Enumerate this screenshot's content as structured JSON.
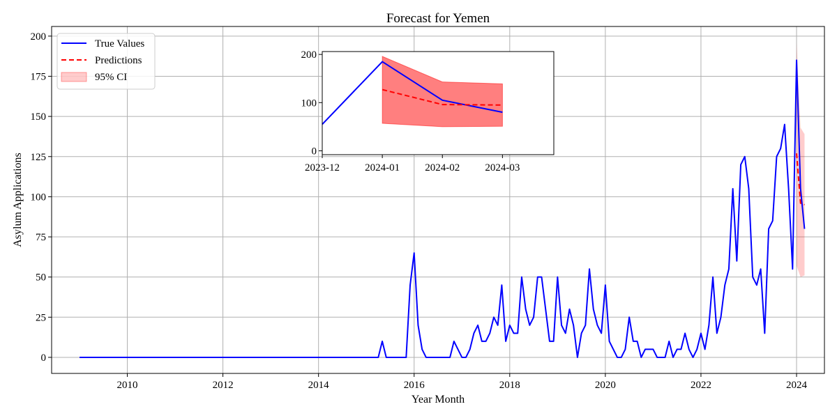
{
  "colors": {
    "true_values": "#0000ff",
    "predictions": "#ff0000",
    "ci_fill": "#ff0000",
    "grid": "#b0b0b0"
  },
  "chart_data": {
    "type": "line",
    "title": "Forecast for Yemen",
    "xlabel": "Year Month",
    "ylabel": "Asylum Applications",
    "xlim": [
      "2008-06",
      "2024-08"
    ],
    "ylim": [
      -10,
      206
    ],
    "x_ticks": [
      "2010",
      "2012",
      "2014",
      "2016",
      "2018",
      "2020",
      "2022",
      "2024"
    ],
    "y_ticks": [
      0,
      25,
      50,
      75,
      100,
      125,
      150,
      175,
      200
    ],
    "grid": true,
    "legend": {
      "position": "top-left",
      "entries": [
        "True Values",
        "Predictions",
        "95% CI"
      ]
    },
    "series": [
      {
        "name": "True Values",
        "style": "solid",
        "color": "#0000ff",
        "x": [
          "2009-01",
          "2015-04",
          "2015-05",
          "2015-06",
          "2015-07",
          "2015-08",
          "2015-09",
          "2015-10",
          "2015-11",
          "2015-12",
          "2016-01",
          "2016-02",
          "2016-03",
          "2016-04",
          "2016-05",
          "2016-06",
          "2016-07",
          "2016-08",
          "2016-09",
          "2016-10",
          "2016-11",
          "2016-12",
          "2017-01",
          "2017-02",
          "2017-03",
          "2017-04",
          "2017-05",
          "2017-06",
          "2017-07",
          "2017-08",
          "2017-09",
          "2017-10",
          "2017-11",
          "2017-12",
          "2018-01",
          "2018-02",
          "2018-03",
          "2018-04",
          "2018-05",
          "2018-06",
          "2018-07",
          "2018-08",
          "2018-09",
          "2018-10",
          "2018-11",
          "2018-12",
          "2019-01",
          "2019-02",
          "2019-03",
          "2019-04",
          "2019-05",
          "2019-06",
          "2019-07",
          "2019-08",
          "2019-09",
          "2019-10",
          "2019-11",
          "2019-12",
          "2020-01",
          "2020-02",
          "2020-03",
          "2020-04",
          "2020-05",
          "2020-06",
          "2020-07",
          "2020-08",
          "2020-09",
          "2020-10",
          "2020-11",
          "2020-12",
          "2021-01",
          "2021-02",
          "2021-03",
          "2021-04",
          "2021-05",
          "2021-06",
          "2021-07",
          "2021-08",
          "2021-09",
          "2021-10",
          "2021-11",
          "2021-12",
          "2022-01",
          "2022-02",
          "2022-03",
          "2022-04",
          "2022-05",
          "2022-06",
          "2022-07",
          "2022-08",
          "2022-09",
          "2022-10",
          "2022-11",
          "2022-12",
          "2023-01",
          "2023-02",
          "2023-03",
          "2023-04",
          "2023-05",
          "2023-06",
          "2023-07",
          "2023-08",
          "2023-09",
          "2023-10",
          "2023-11",
          "2023-12",
          "2024-01",
          "2024-02",
          "2024-03"
        ],
        "y": [
          0,
          0,
          10,
          0,
          0,
          0,
          0,
          0,
          0,
          45,
          65,
          20,
          5,
          0,
          0,
          0,
          0,
          0,
          0,
          0,
          10,
          5,
          0,
          0,
          5,
          15,
          20,
          10,
          10,
          15,
          25,
          20,
          45,
          10,
          20,
          15,
          15,
          50,
          30,
          20,
          25,
          50,
          50,
          30,
          10,
          10,
          50,
          20,
          15,
          30,
          20,
          0,
          15,
          20,
          55,
          30,
          20,
          15,
          45,
          10,
          5,
          0,
          0,
          5,
          25,
          10,
          10,
          0,
          5,
          5,
          5,
          0,
          0,
          0,
          10,
          0,
          5,
          5,
          15,
          5,
          0,
          5,
          15,
          5,
          20,
          50,
          15,
          25,
          45,
          55,
          105,
          60,
          120,
          125,
          105,
          50,
          45,
          55,
          15,
          80,
          85,
          125,
          130,
          145,
          105,
          55,
          185,
          105,
          80
        ]
      },
      {
        "name": "Predictions",
        "style": "dashed",
        "color": "#ff0000",
        "x": [
          "2024-01",
          "2024-02",
          "2024-03"
        ],
        "y": [
          127,
          96,
          95
        ]
      }
    ],
    "confidence_interval": {
      "name": "95% CI",
      "x": [
        "2024-01",
        "2024-02",
        "2024-03"
      ],
      "lower": [
        57,
        50,
        51
      ],
      "upper": [
        196,
        143,
        139
      ]
    },
    "inset": {
      "xlim": [
        "2023-12",
        "2024-03-27"
      ],
      "ylim": [
        -8,
        206
      ],
      "x_ticks": [
        "2023-12",
        "2024-01",
        "2024-02",
        "2024-03"
      ],
      "y_ticks": [
        0,
        100,
        200
      ],
      "true_values": {
        "x": [
          "2023-12",
          "2024-01",
          "2024-02",
          "2024-03"
        ],
        "y": [
          55,
          185,
          105,
          80
        ]
      }
    }
  }
}
